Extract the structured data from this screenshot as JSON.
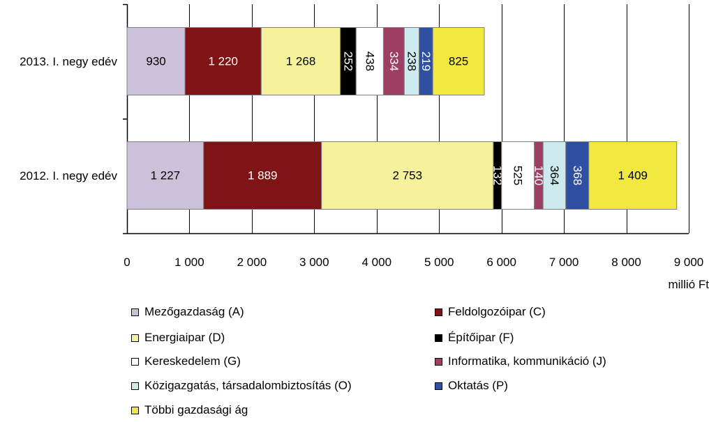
{
  "chart_data": {
    "type": "bar",
    "orientation": "horizontal",
    "stacked": true,
    "categories": [
      "2013. I. negyedév",
      "2012. I. negyedév"
    ],
    "category_labels": [
      "2013. I. negy edév",
      "2012. I. negy edév"
    ],
    "series": [
      {
        "name": "Mezőgazdaság (A)",
        "color": "#CCC0DA",
        "values": [
          930,
          1227
        ],
        "labels": [
          "930",
          "1 227"
        ]
      },
      {
        "name": "Feldolgozóipar (C)",
        "color": "#7F1416",
        "values": [
          1220,
          1889
        ],
        "labels": [
          "1 220",
          "1 889"
        ]
      },
      {
        "name": "Energiaipar (D)",
        "color": "#F5F29B",
        "values": [
          1268,
          2753
        ],
        "labels": [
          "1 268",
          "2 753"
        ]
      },
      {
        "name": "Építőipar (F)",
        "color": "#000000",
        "values": [
          252,
          132
        ],
        "labels": [
          "252",
          "132"
        ]
      },
      {
        "name": "Kereskedelem (G)",
        "color": "#FFFFFF",
        "values": [
          438,
          525
        ],
        "labels": [
          "438",
          "525"
        ]
      },
      {
        "name": "Informatika, kommunikáció (J)",
        "color": "#9C3F63",
        "values": [
          334,
          140
        ],
        "labels": [
          "334",
          "140"
        ]
      },
      {
        "name": "Közigazgatás, társadalombiztosítás (O)",
        "color": "#CDEBEF",
        "values": [
          238,
          364
        ],
        "labels": [
          "238",
          "364"
        ]
      },
      {
        "name": "Oktatás (P)",
        "color": "#2E4FA2",
        "values": [
          219,
          368
        ],
        "labels": [
          "219",
          "368"
        ]
      },
      {
        "name": "Többi gazdasági ág",
        "color": "#F1E93F",
        "values": [
          825,
          1409
        ],
        "labels": [
          "825",
          "1 409"
        ]
      }
    ],
    "xlim": [
      0,
      9000
    ],
    "xticks": [
      0,
      1000,
      2000,
      3000,
      4000,
      5000,
      6000,
      7000,
      8000,
      9000
    ],
    "xtick_labels": [
      "0",
      "1 000",
      "2 000",
      "3 000",
      "4 000",
      "5 000",
      "6 000",
      "7 000",
      "8 000",
      "9 000"
    ],
    "xlabel": "millió Ft",
    "grid": "vertical",
    "legend_placement": "bottom",
    "value_label_orientation": [
      [
        "horizontal",
        "horizontal",
        "horizontal",
        "vertical",
        "vertical",
        "vertical",
        "vertical",
        "vertical",
        "horizontal"
      ],
      [
        "horizontal",
        "horizontal",
        "horizontal",
        "vertical",
        "vertical",
        "vertical",
        "vertical",
        "vertical",
        "horizontal"
      ]
    ]
  }
}
